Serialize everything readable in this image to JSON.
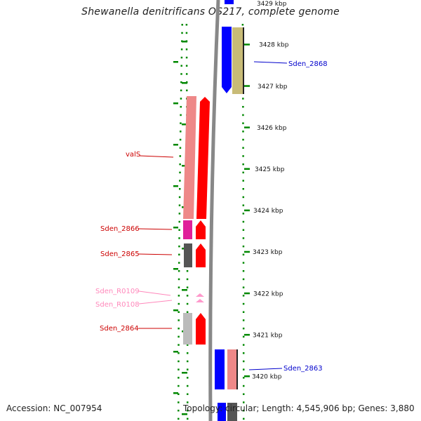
{
  "title": "Shewanella denitrificans OS217, complete genome",
  "accession": "Accession: NC_007954",
  "summary": "Topology: circular; Length: 4,545,906 bp; Genes: 3,880",
  "scale": {
    "top_partial_label": "3429 kbp",
    "labels": [
      {
        "text": "3428 kbp",
        "kbp": 3428
      },
      {
        "text": "3427 kbp",
        "kbp": 3427
      },
      {
        "text": "3426 kbp",
        "kbp": 3426
      },
      {
        "text": "3425 kbp",
        "kbp": 3425
      },
      {
        "text": "3424 kbp",
        "kbp": 3424
      },
      {
        "text": "3423 kbp",
        "kbp": 3423
      },
      {
        "text": "3422 kbp",
        "kbp": 3422
      },
      {
        "text": "3421 kbp",
        "kbp": 3421
      },
      {
        "text": "3420 kbp",
        "kbp": 3420
      }
    ]
  },
  "genes": [
    {
      "label": "valS",
      "color": "#cc0000",
      "start_kbp": 3426.45,
      "end_kbp": 3423.5,
      "strand": "reverse"
    },
    {
      "label": "Sden_2866",
      "color": "#cc0000",
      "start_kbp": 3423.7,
      "end_kbp": 3423.2,
      "strand": "reverse"
    },
    {
      "label": "Sden_2865",
      "color": "#cc0000",
      "start_kbp": 3423.15,
      "end_kbp": 3422.6,
      "strand": "reverse"
    },
    {
      "label": "Sden_R0109",
      "color": "#ff88bb",
      "start_kbp": 3422.02,
      "end_kbp": 3421.98,
      "strand": "reverse"
    },
    {
      "label": "Sden_R0108",
      "color": "#ff88bb",
      "start_kbp": 3421.92,
      "end_kbp": 3421.88,
      "strand": "reverse"
    },
    {
      "label": "Sden_2864",
      "color": "#cc0000",
      "start_kbp": 3421.45,
      "end_kbp": 3420.7,
      "strand": "reverse"
    },
    {
      "label": "Sden_2868",
      "color": "#0000cc",
      "start_kbp": 3428.45,
      "end_kbp": 3426.8,
      "strand": "forward"
    },
    {
      "label": "Sden_2863",
      "color": "#0000cc",
      "start_kbp": 3420.4,
      "end_kbp": 3419.4,
      "strand": "forward"
    }
  ],
  "colors": {
    "backbone": "#888888",
    "tick": "#008800",
    "cds_fill": "#ff0000",
    "reverse_bar": "#ee8888",
    "forward_cds": "#0000ff",
    "forward_bar": "#c8bb77",
    "magenta": "#e0209a",
    "dark_gray": "#555555",
    "light_gray": "#bbbbbb",
    "rna": "#ff99cc"
  }
}
